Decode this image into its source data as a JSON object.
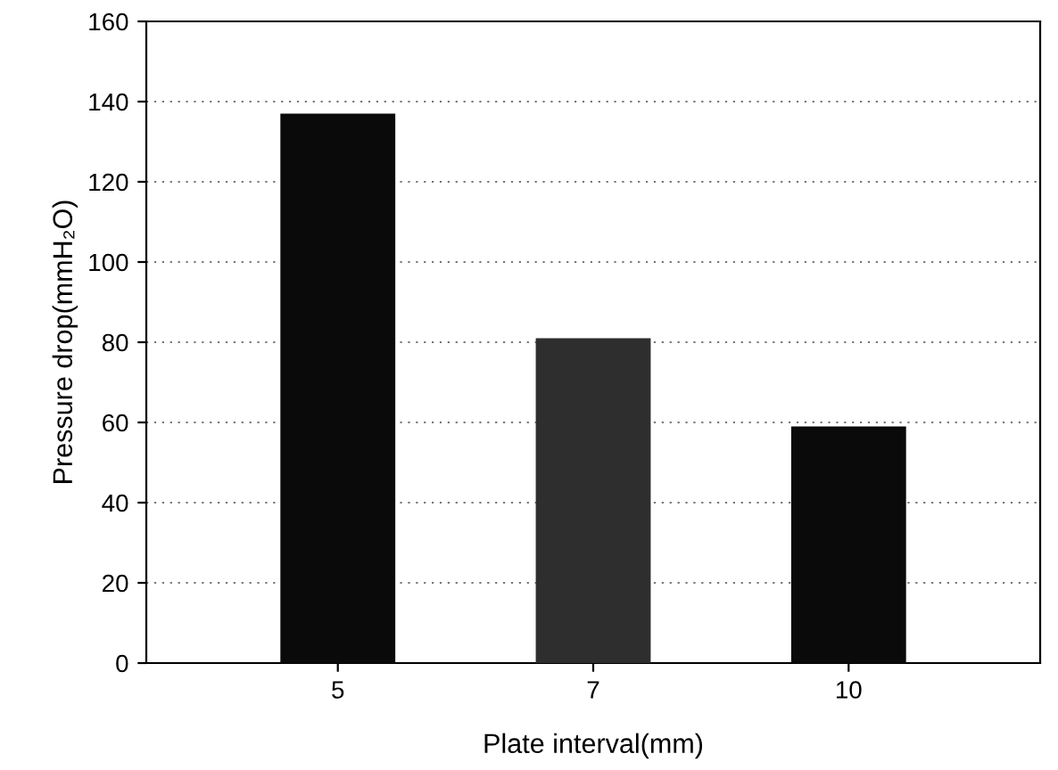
{
  "chart_data": {
    "type": "bar",
    "xlabel": "Plate interval(mm)",
    "ylabel": "Pressure drop(mmH₂O)",
    "categories": [
      "5",
      "7",
      "10"
    ],
    "values": [
      137,
      81,
      59
    ],
    "colors": [
      "#0a0a0a",
      "#2e2e2e",
      "#0a0a0a"
    ],
    "ylim": [
      0,
      160
    ],
    "yticks": [
      0,
      20,
      40,
      60,
      80,
      100,
      120,
      140,
      160
    ],
    "grid": "y"
  }
}
